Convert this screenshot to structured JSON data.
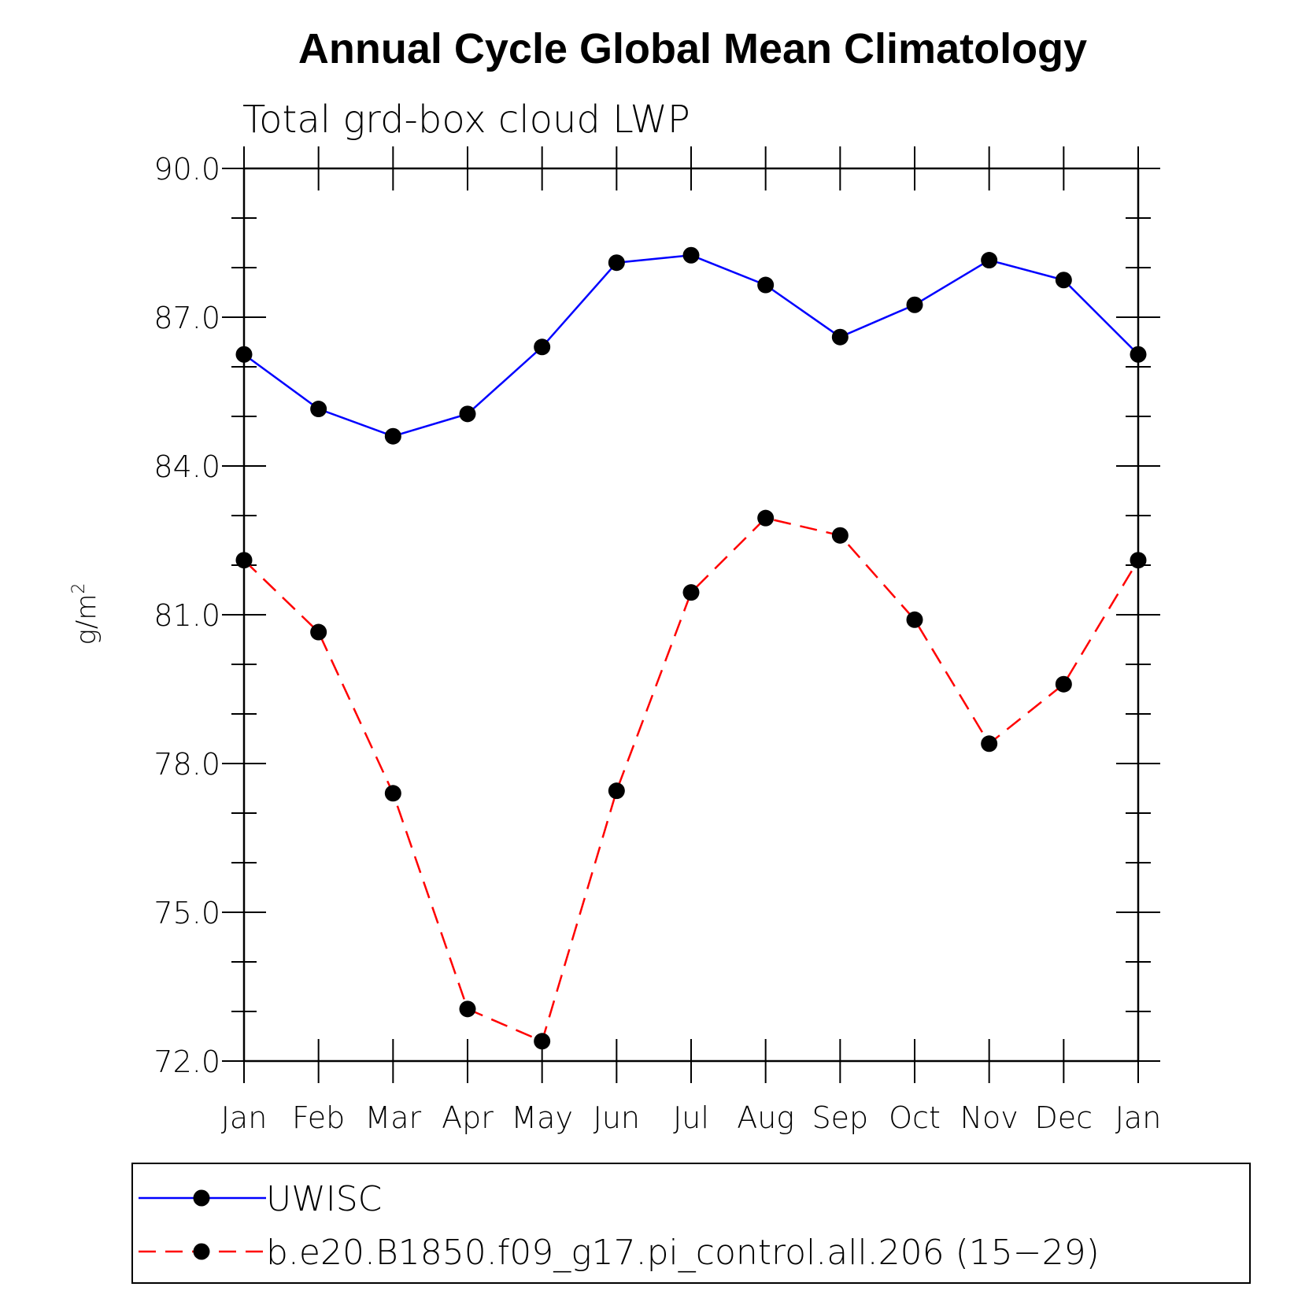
{
  "chart_data": {
    "type": "line",
    "title": "Annual Cycle Global Mean Climatology",
    "subtitle": "Total grd-box cloud LWP",
    "ylabel": "g/m",
    "ylabel_sup": "2",
    "ylim": [
      72.0,
      90.0
    ],
    "yticks": [
      "72.0",
      "75.0",
      "78.0",
      "81.0",
      "84.0",
      "87.0",
      "90.0"
    ],
    "categories": [
      "Jan",
      "Feb",
      "Mar",
      "Apr",
      "May",
      "Jun",
      "Jul",
      "Aug",
      "Sep",
      "Oct",
      "Nov",
      "Dec",
      "Jan"
    ],
    "grid": false,
    "legend_position": "bottom",
    "series": [
      {
        "name": "UWISC",
        "color": "#0000ff",
        "style": "solid",
        "values": [
          86.25,
          85.15,
          84.6,
          85.05,
          86.4,
          88.1,
          88.25,
          87.65,
          86.6,
          87.25,
          88.15,
          87.75,
          86.25
        ]
      },
      {
        "name": "b.e20.B1850.f09_g17.pi_control.all.206 (15−29)",
        "color": "#ff0000",
        "style": "dashed",
        "values": [
          82.1,
          80.65,
          77.4,
          73.05,
          72.4,
          77.45,
          81.45,
          82.95,
          82.6,
          80.9,
          78.4,
          79.6,
          82.1
        ]
      }
    ]
  }
}
